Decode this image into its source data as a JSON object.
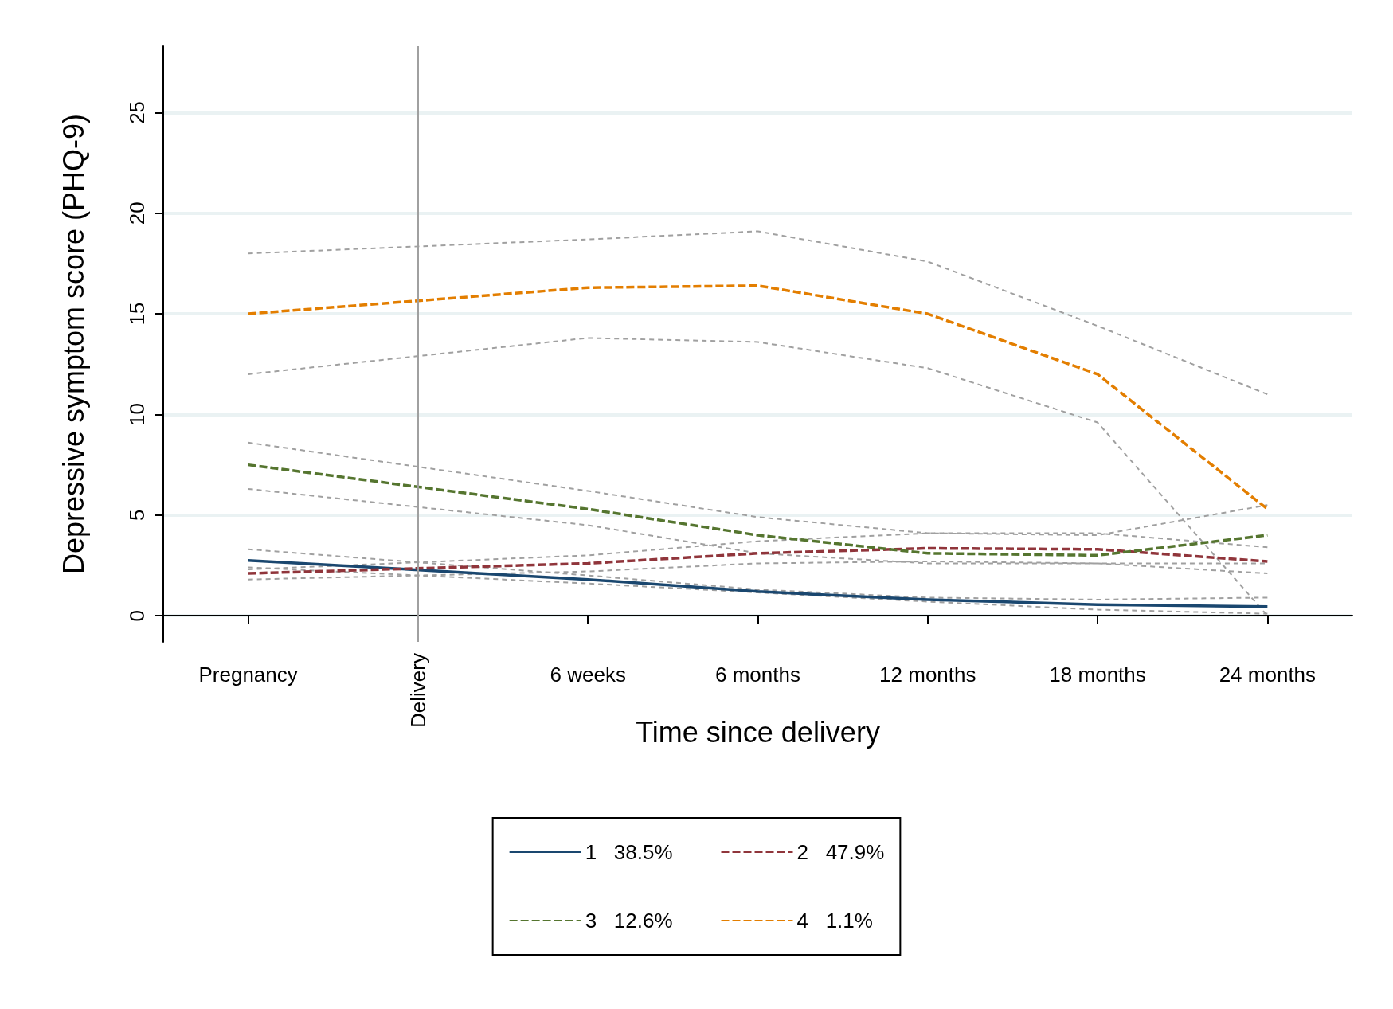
{
  "chart_data": {
    "type": "line",
    "xlabel": "Time since delivery",
    "ylabel": "Depressive symptom score (PHQ-9)",
    "ylim": [
      -1.3,
      28.3
    ],
    "yticks": [
      0,
      5,
      10,
      15,
      20,
      25
    ],
    "categories": [
      "Pregnancy",
      "Delivery",
      "6 weeks",
      "6 months",
      "12 months",
      "18 months",
      "24 months"
    ],
    "grid": "y",
    "legend": "bottom",
    "ref_lines": [
      {
        "axis": "x",
        "value": "Delivery",
        "color": "#a0a0a0"
      }
    ],
    "series": [
      {
        "color": "#a0a0a0",
        "line_style": "dashed",
        "values": [
          2.4,
          null,
          1.6,
          1.15,
          0.7,
          0.3,
          0.1
        ]
      },
      {
        "color": "#a0a0a0",
        "line_style": "dashed",
        "values": [
          3.3,
          null,
          2.0,
          1.3,
          0.9,
          0.8,
          0.9
        ]
      },
      {
        "color": "#a0a0a0",
        "line_style": "dashed",
        "values": [
          1.8,
          null,
          2.2,
          2.6,
          2.7,
          2.6,
          2.1
        ]
      },
      {
        "color": "#a0a0a0",
        "line_style": "dashed",
        "values": [
          2.3,
          null,
          3.0,
          3.7,
          4.1,
          4.1,
          3.4
        ]
      },
      {
        "color": "#a0a0a0",
        "line_style": "dashed",
        "values": [
          6.3,
          null,
          4.5,
          3.1,
          2.6,
          2.6,
          2.6
        ]
      },
      {
        "color": "#a0a0a0",
        "line_style": "dashed",
        "values": [
          8.6,
          null,
          6.2,
          4.9,
          4.1,
          4.0,
          5.5
        ]
      },
      {
        "color": "#a0a0a0",
        "line_style": "dashed",
        "values": [
          12.0,
          null,
          13.8,
          13.6,
          12.3,
          9.6,
          0.0
        ]
      },
      {
        "color": "#a0a0a0",
        "line_style": "dashed",
        "values": [
          18.0,
          null,
          18.7,
          19.1,
          17.6,
          14.4,
          11.0
        ]
      },
      {
        "name": "1   38.5%",
        "color": "#1a476f",
        "line_style": "solid",
        "values": [
          2.75,
          null,
          1.8,
          1.2,
          0.8,
          0.55,
          0.45
        ]
      },
      {
        "name": "2   47.9%",
        "color": "#90353b",
        "line_style": "dashed",
        "values": [
          2.1,
          null,
          2.6,
          3.1,
          3.35,
          3.3,
          2.7
        ]
      },
      {
        "name": "3   12.6%",
        "color": "#55752f",
        "line_style": "dashed",
        "values": [
          7.5,
          null,
          5.3,
          4.0,
          3.1,
          3.0,
          4.0
        ]
      },
      {
        "name": "4   1.1%",
        "color": "#e37e00",
        "line_style": "dashed",
        "values": [
          15.0,
          null,
          16.3,
          16.4,
          15.0,
          12.0,
          5.3
        ]
      }
    ]
  }
}
